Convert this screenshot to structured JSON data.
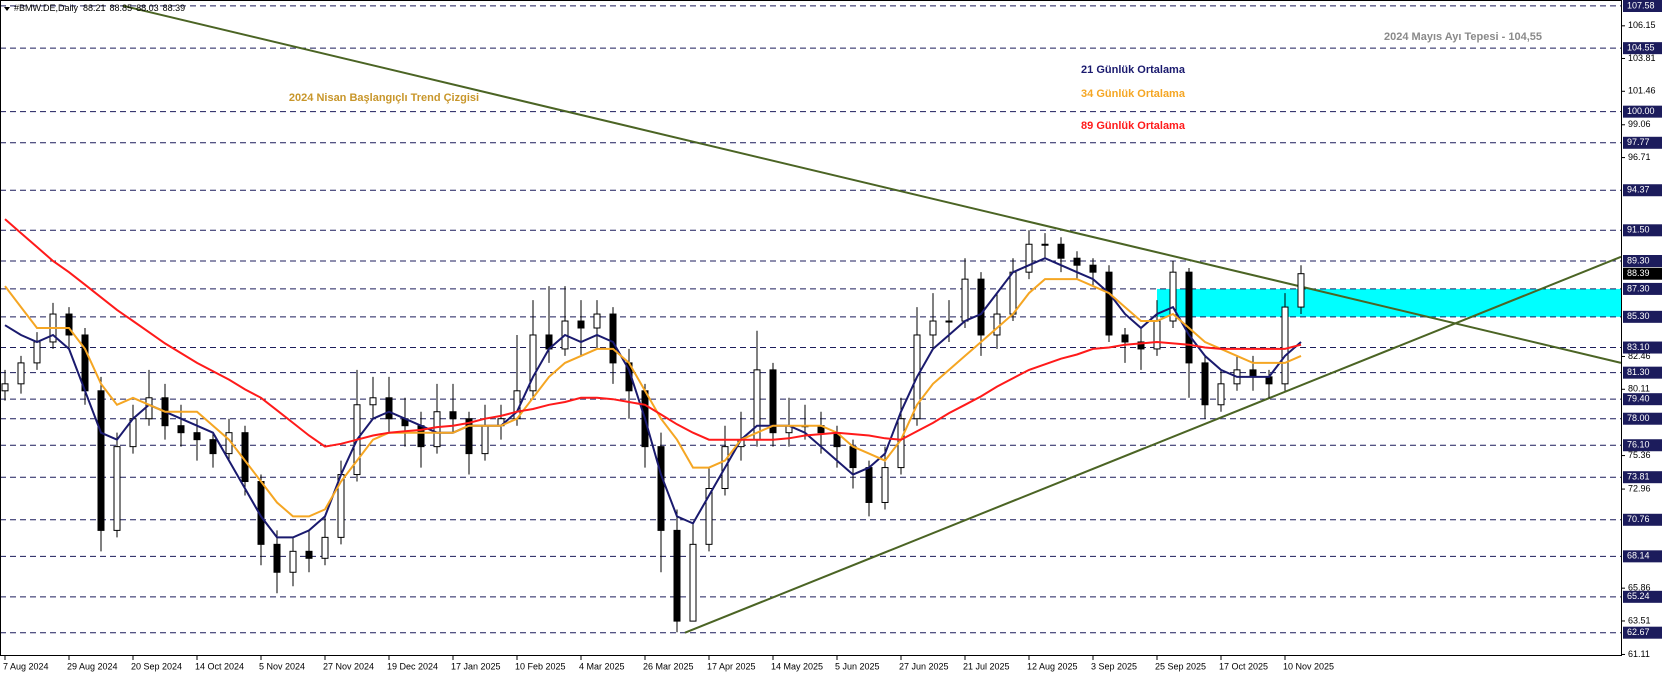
{
  "chart_data": {
    "type": "candlestick",
    "header": "#BMW.DE,Daily",
    "header_values": [
      88.21,
      88.85,
      88.03,
      88.39
    ],
    "categories": [
      "7 Aug 2024",
      null,
      null,
      null,
      "29 Aug 2024",
      null,
      null,
      null,
      "20 Sep 2024",
      null,
      null,
      null,
      "14 Oct 2024",
      null,
      null,
      null,
      "5 Nov 2024",
      null,
      null,
      null,
      "27 Nov 2024",
      null,
      null,
      null,
      "19 Dec 2024",
      null,
      null,
      null,
      "17 Jan 2025",
      null,
      null,
      null,
      "10 Feb 2025",
      null,
      null,
      null,
      "4 Mar 2025",
      null,
      null,
      null,
      "26 Mar 2025",
      null,
      null,
      null,
      "17 Apr 2025",
      null,
      null,
      null,
      "14 May 2025",
      null,
      null,
      null,
      "5 Jun 2025",
      null,
      null,
      null,
      "27 Jun 2025",
      null,
      null,
      null,
      "21 Jul 2025",
      null,
      null,
      null,
      "12 Aug 2025",
      null,
      null,
      null,
      "3 Sep 2025",
      null,
      null,
      null,
      "25 Sep 2025",
      null,
      null,
      null,
      "17 Oct 2025",
      null,
      null,
      null,
      "10 Nov 2025",
      null
    ],
    "open": [
      80,
      80.5,
      82,
      83.5,
      85.5,
      84,
      80,
      70,
      76,
      78,
      79.5,
      77.5,
      77,
      76.5,
      75.5,
      77,
      73.5,
      69,
      67,
      68.5,
      68,
      69.5,
      74,
      79,
      79.5,
      78,
      77.5,
      76,
      78.5,
      78,
      75.5,
      77.5,
      78,
      80,
      84,
      83,
      85,
      84.5,
      85.5,
      82,
      80,
      76,
      70,
      63.5,
      69,
      73,
      76,
      76.5,
      81.5,
      77,
      77.5,
      77.5,
      77,
      76,
      74.5,
      72,
      74.5,
      78,
      84,
      85,
      85,
      88,
      84,
      85.5,
      88.5,
      90.5,
      90.5,
      89.5,
      89,
      88.5,
      84,
      83.5,
      83,
      85,
      88.5,
      82,
      79,
      80.5,
      81.5,
      81,
      80.5,
      86
    ],
    "high": [
      81.5,
      82.5,
      84.2,
      86.3,
      86,
      84.5,
      81,
      77,
      79,
      81.5,
      80.5,
      79,
      78,
      77,
      78,
      77.5,
      74,
      70,
      69.5,
      70,
      71,
      75,
      81.5,
      81,
      81,
      79.5,
      78.5,
      80.5,
      80.5,
      78.5,
      79,
      79,
      84,
      86.5,
      87.5,
      87.5,
      86.5,
      86.5,
      86,
      83,
      80.5,
      77,
      71.5,
      70.5,
      74.5,
      77.5,
      78.5,
      84.3,
      82,
      79.5,
      79,
      78.5,
      77.5,
      76.5,
      75,
      76,
      79.5,
      86,
      87,
      86.5,
      89.5,
      88.5,
      87,
      89.5,
      91.5,
      91.3,
      91,
      90,
      89.5,
      89,
      84.5,
      84.5,
      86.5,
      89.3,
      88.8,
      82.5,
      81.5,
      82.5,
      82.5,
      81.5,
      87,
      89
    ],
    "low": [
      79.3,
      79.8,
      81.5,
      83,
      83,
      79,
      68.5,
      69.5,
      75.5,
      77.5,
      76.5,
      76,
      75,
      74.5,
      75,
      72.5,
      67.5,
      65.5,
      66,
      67,
      67.5,
      69,
      73.5,
      78,
      77,
      76,
      74.5,
      75.5,
      77,
      74,
      75,
      76.5,
      77.5,
      79.5,
      82,
      82.5,
      82.5,
      83,
      80.5,
      78,
      74.5,
      67,
      62.7,
      63.5,
      68.5,
      72.5,
      75,
      76,
      76,
      76,
      76.5,
      75.5,
      74.5,
      73,
      71,
      71.5,
      74,
      77.5,
      83,
      83.5,
      84.5,
      82.5,
      83,
      85,
      88,
      89.5,
      88.5,
      88,
      87.5,
      83.5,
      82,
      81.5,
      82.5,
      84.5,
      79.5,
      78,
      78.5,
      80,
      80,
      79.5,
      80,
      85.5
    ],
    "close": [
      80.5,
      82,
      83.5,
      85.5,
      84,
      80,
      70,
      76,
      78,
      79.5,
      77.5,
      77,
      76.5,
      75.5,
      77,
      73.5,
      69,
      67,
      68.5,
      68,
      69.5,
      74,
      79,
      79.5,
      78,
      77.5,
      76,
      78.5,
      78,
      75.5,
      77.5,
      78,
      80,
      84,
      83,
      85,
      84.5,
      85.5,
      82,
      80,
      76,
      70,
      63.5,
      69,
      73,
      76,
      76.5,
      81.5,
      77,
      77.5,
      77.5,
      77,
      76,
      74.5,
      72,
      74.5,
      78,
      84,
      85,
      85,
      88,
      84,
      85.5,
      88.5,
      90.5,
      90.5,
      89.5,
      89,
      88.5,
      84,
      83.5,
      83,
      85,
      88.5,
      82,
      79,
      80.5,
      81.5,
      81,
      80.5,
      86,
      88.39
    ],
    "series": [
      {
        "name": "21 Günlük Ortalama",
        "color": "#1a1a6e",
        "values": [
          84.7,
          84,
          83.5,
          84,
          83,
          80,
          77,
          76.5,
          78,
          79,
          78.5,
          78,
          77.5,
          77,
          75,
          73,
          71,
          69.5,
          69.5,
          70,
          71,
          74,
          76.5,
          78,
          78.5,
          78,
          77.5,
          77,
          77,
          77.5,
          77.5,
          77.5,
          78.5,
          81,
          83,
          84,
          83.5,
          84,
          83.5,
          81.5,
          78,
          74,
          71,
          70.5,
          72.5,
          74.5,
          76.5,
          77.5,
          77.5,
          77.5,
          77,
          76,
          75,
          74,
          74.5,
          75.5,
          78.5,
          81,
          83,
          84,
          85,
          85.5,
          87,
          88.5,
          89,
          89.5,
          89,
          88.5,
          88,
          87,
          85.5,
          84.5,
          85.5,
          86,
          84,
          82.5,
          81.5,
          81,
          81,
          81,
          82.5,
          83.5
        ]
      },
      {
        "name": "34 Günlük Ortalama",
        "color": "#f5a623",
        "values": [
          87.5,
          86,
          84.5,
          84.5,
          84.5,
          83,
          80.5,
          79,
          79.5,
          79,
          78.5,
          78.5,
          78.5,
          77.5,
          76.5,
          75,
          73.5,
          72,
          71,
          71,
          71.5,
          73.5,
          75,
          76.5,
          77,
          77,
          77,
          77,
          77,
          77.5,
          77.5,
          77.5,
          78,
          79.5,
          81,
          82,
          82.5,
          83,
          83,
          82,
          80,
          78,
          76.5,
          74.5,
          74.5,
          75,
          76.5,
          77,
          77.5,
          77.5,
          77.5,
          77.5,
          77,
          76,
          75.5,
          75,
          76.5,
          79,
          80.5,
          81.5,
          82.5,
          83.5,
          84.5,
          85.5,
          87,
          88,
          88,
          88,
          87.5,
          87,
          86,
          85,
          85,
          85.5,
          84.5,
          83.5,
          83,
          82.5,
          82,
          82,
          82,
          82.5
        ]
      },
      {
        "name": "89 Günlük Ortalama",
        "color": "#ff1a1a",
        "values": [
          92.3,
          91.3,
          90.3,
          89.3,
          88.5,
          87.6,
          86.7,
          85.8,
          85,
          84.2,
          83.4,
          82.7,
          82,
          81.4,
          80.8,
          80.1,
          79.5,
          78.6,
          77.7,
          76.8,
          76,
          76.2,
          76.5,
          76.8,
          77,
          77.1,
          77.2,
          77.4,
          77.5,
          77.7,
          78,
          78.2,
          78.5,
          78.7,
          79,
          79.2,
          79.5,
          79.5,
          79.4,
          79.2,
          79,
          78.3,
          77.6,
          77,
          76.5,
          76.5,
          76.5,
          76.5,
          76.5,
          76.6,
          76.8,
          76.9,
          77,
          76.9,
          76.8,
          76.6,
          76.5,
          77.1,
          77.7,
          78.4,
          79,
          79.6,
          80.3,
          80.9,
          81.5,
          81.9,
          82.3,
          82.6,
          83,
          83.1,
          83.3,
          83.4,
          83.5,
          83.4,
          83.3,
          83.1,
          83,
          83,
          83,
          83,
          83,
          83.3
        ]
      }
    ],
    "ylim": [
      61,
      108
    ],
    "yticks": [
      106.15,
      103.81,
      101.46,
      99.06,
      96.71,
      82.46,
      80.11,
      75.36,
      72.96,
      65.86,
      63.51,
      61.11
    ],
    "levels": [
      107.58,
      104.55,
      {
        "value": 100,
        "label": "100.00"
      },
      97.77,
      94.37,
      {
        "value": 91.5,
        "label": "91.50"
      },
      {
        "value": 89.3,
        "label": "89.30"
      },
      {
        "value": 87.3,
        "label": "87.30"
      },
      {
        "value": 85.3,
        "label": "85.30"
      },
      {
        "value": 83.1,
        "label": "83.10"
      },
      {
        "value": 81.3,
        "label": "81.30"
      },
      {
        "value": 79.4,
        "label": "79.40"
      },
      {
        "value": 78,
        "label": "78.00"
      },
      {
        "value": 76.1,
        "label": "76.10"
      },
      73.81,
      70.76,
      68.14,
      65.24,
      62.67
    ],
    "level_color": "#1c1c5c",
    "last_price": 88.39,
    "zone": {
      "from": 72,
      "y": [
        85.3,
        87.3
      ],
      "color": "#00ffff"
    },
    "trend_lines": [
      {
        "x": [
          7.4,
          101
        ],
        "y": [
          107.58,
          82.0
        ],
        "color": "#4b6424"
      },
      {
        "x": [
          42.5,
          101
        ],
        "y": [
          62.67,
          89.6
        ],
        "color": "#4b6424"
      }
    ],
    "annotations": [
      {
        "text": "2024 Mayıs Ayı Tepesi - 104,55",
        "color": "#8a8a8a"
      },
      {
        "text": "2024 Nisan Başlangıçlı Trend Çizgisi",
        "color": "#c8962a"
      }
    ]
  }
}
